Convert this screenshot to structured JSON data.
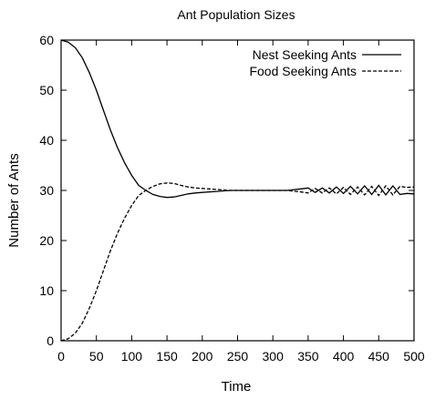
{
  "chart_data": {
    "type": "line",
    "title": "Ant Population Sizes",
    "xlabel": "Time",
    "ylabel": "Number of Ants",
    "xlim": [
      0,
      500
    ],
    "ylim": [
      0,
      60
    ],
    "xticks": [
      0,
      50,
      100,
      150,
      200,
      250,
      300,
      350,
      400,
      450,
      500
    ],
    "yticks": [
      0,
      10,
      20,
      30,
      40,
      50,
      60
    ],
    "grid": false,
    "legend_position": "top-right",
    "series": [
      {
        "name": "Nest Seeking Ants",
        "color": "#000000",
        "x": [
          0,
          10,
          20,
          30,
          40,
          50,
          60,
          70,
          80,
          90,
          100,
          110,
          120,
          130,
          140,
          150,
          160,
          170,
          180,
          190,
          200,
          220,
          240,
          260,
          280,
          300,
          320,
          340,
          350,
          360,
          370,
          380,
          390,
          400,
          410,
          420,
          430,
          440,
          450,
          460,
          470,
          480,
          490,
          500
        ],
        "y": [
          60,
          59.6,
          58.5,
          56.5,
          53.5,
          50,
          46,
          42,
          38.5,
          35.5,
          33,
          31,
          30,
          29.2,
          28.8,
          28.6,
          28.7,
          29,
          29.3,
          29.5,
          29.6,
          29.8,
          30,
          30,
          30,
          30,
          30,
          30.3,
          30.5,
          29.6,
          30.5,
          29.5,
          30.7,
          29.4,
          30.8,
          29.3,
          30.9,
          29.2,
          31,
          29.1,
          30.9,
          29.2,
          29.4,
          29.3
        ]
      },
      {
        "name": "Food Seeking Ants",
        "color": "#000000",
        "x": [
          0,
          10,
          20,
          30,
          40,
          50,
          60,
          70,
          80,
          90,
          100,
          110,
          120,
          130,
          140,
          150,
          160,
          170,
          180,
          190,
          200,
          220,
          240,
          260,
          280,
          300,
          320,
          340,
          350,
          360,
          370,
          380,
          390,
          400,
          410,
          420,
          430,
          440,
          450,
          460,
          470,
          480,
          490,
          500
        ],
        "y": [
          0,
          0.4,
          1.5,
          3.5,
          6.5,
          10,
          14,
          18,
          21.5,
          24.5,
          27,
          29,
          30,
          30.8,
          31.3,
          31.5,
          31.4,
          31,
          30.7,
          30.5,
          30.4,
          30.2,
          30,
          30,
          30,
          30,
          30,
          29.7,
          29.5,
          30.4,
          29.5,
          30.5,
          29.3,
          30.6,
          29.2,
          30.7,
          29.1,
          30.8,
          29,
          30.9,
          29.1,
          30.8,
          30.6,
          30.7
        ]
      }
    ]
  }
}
